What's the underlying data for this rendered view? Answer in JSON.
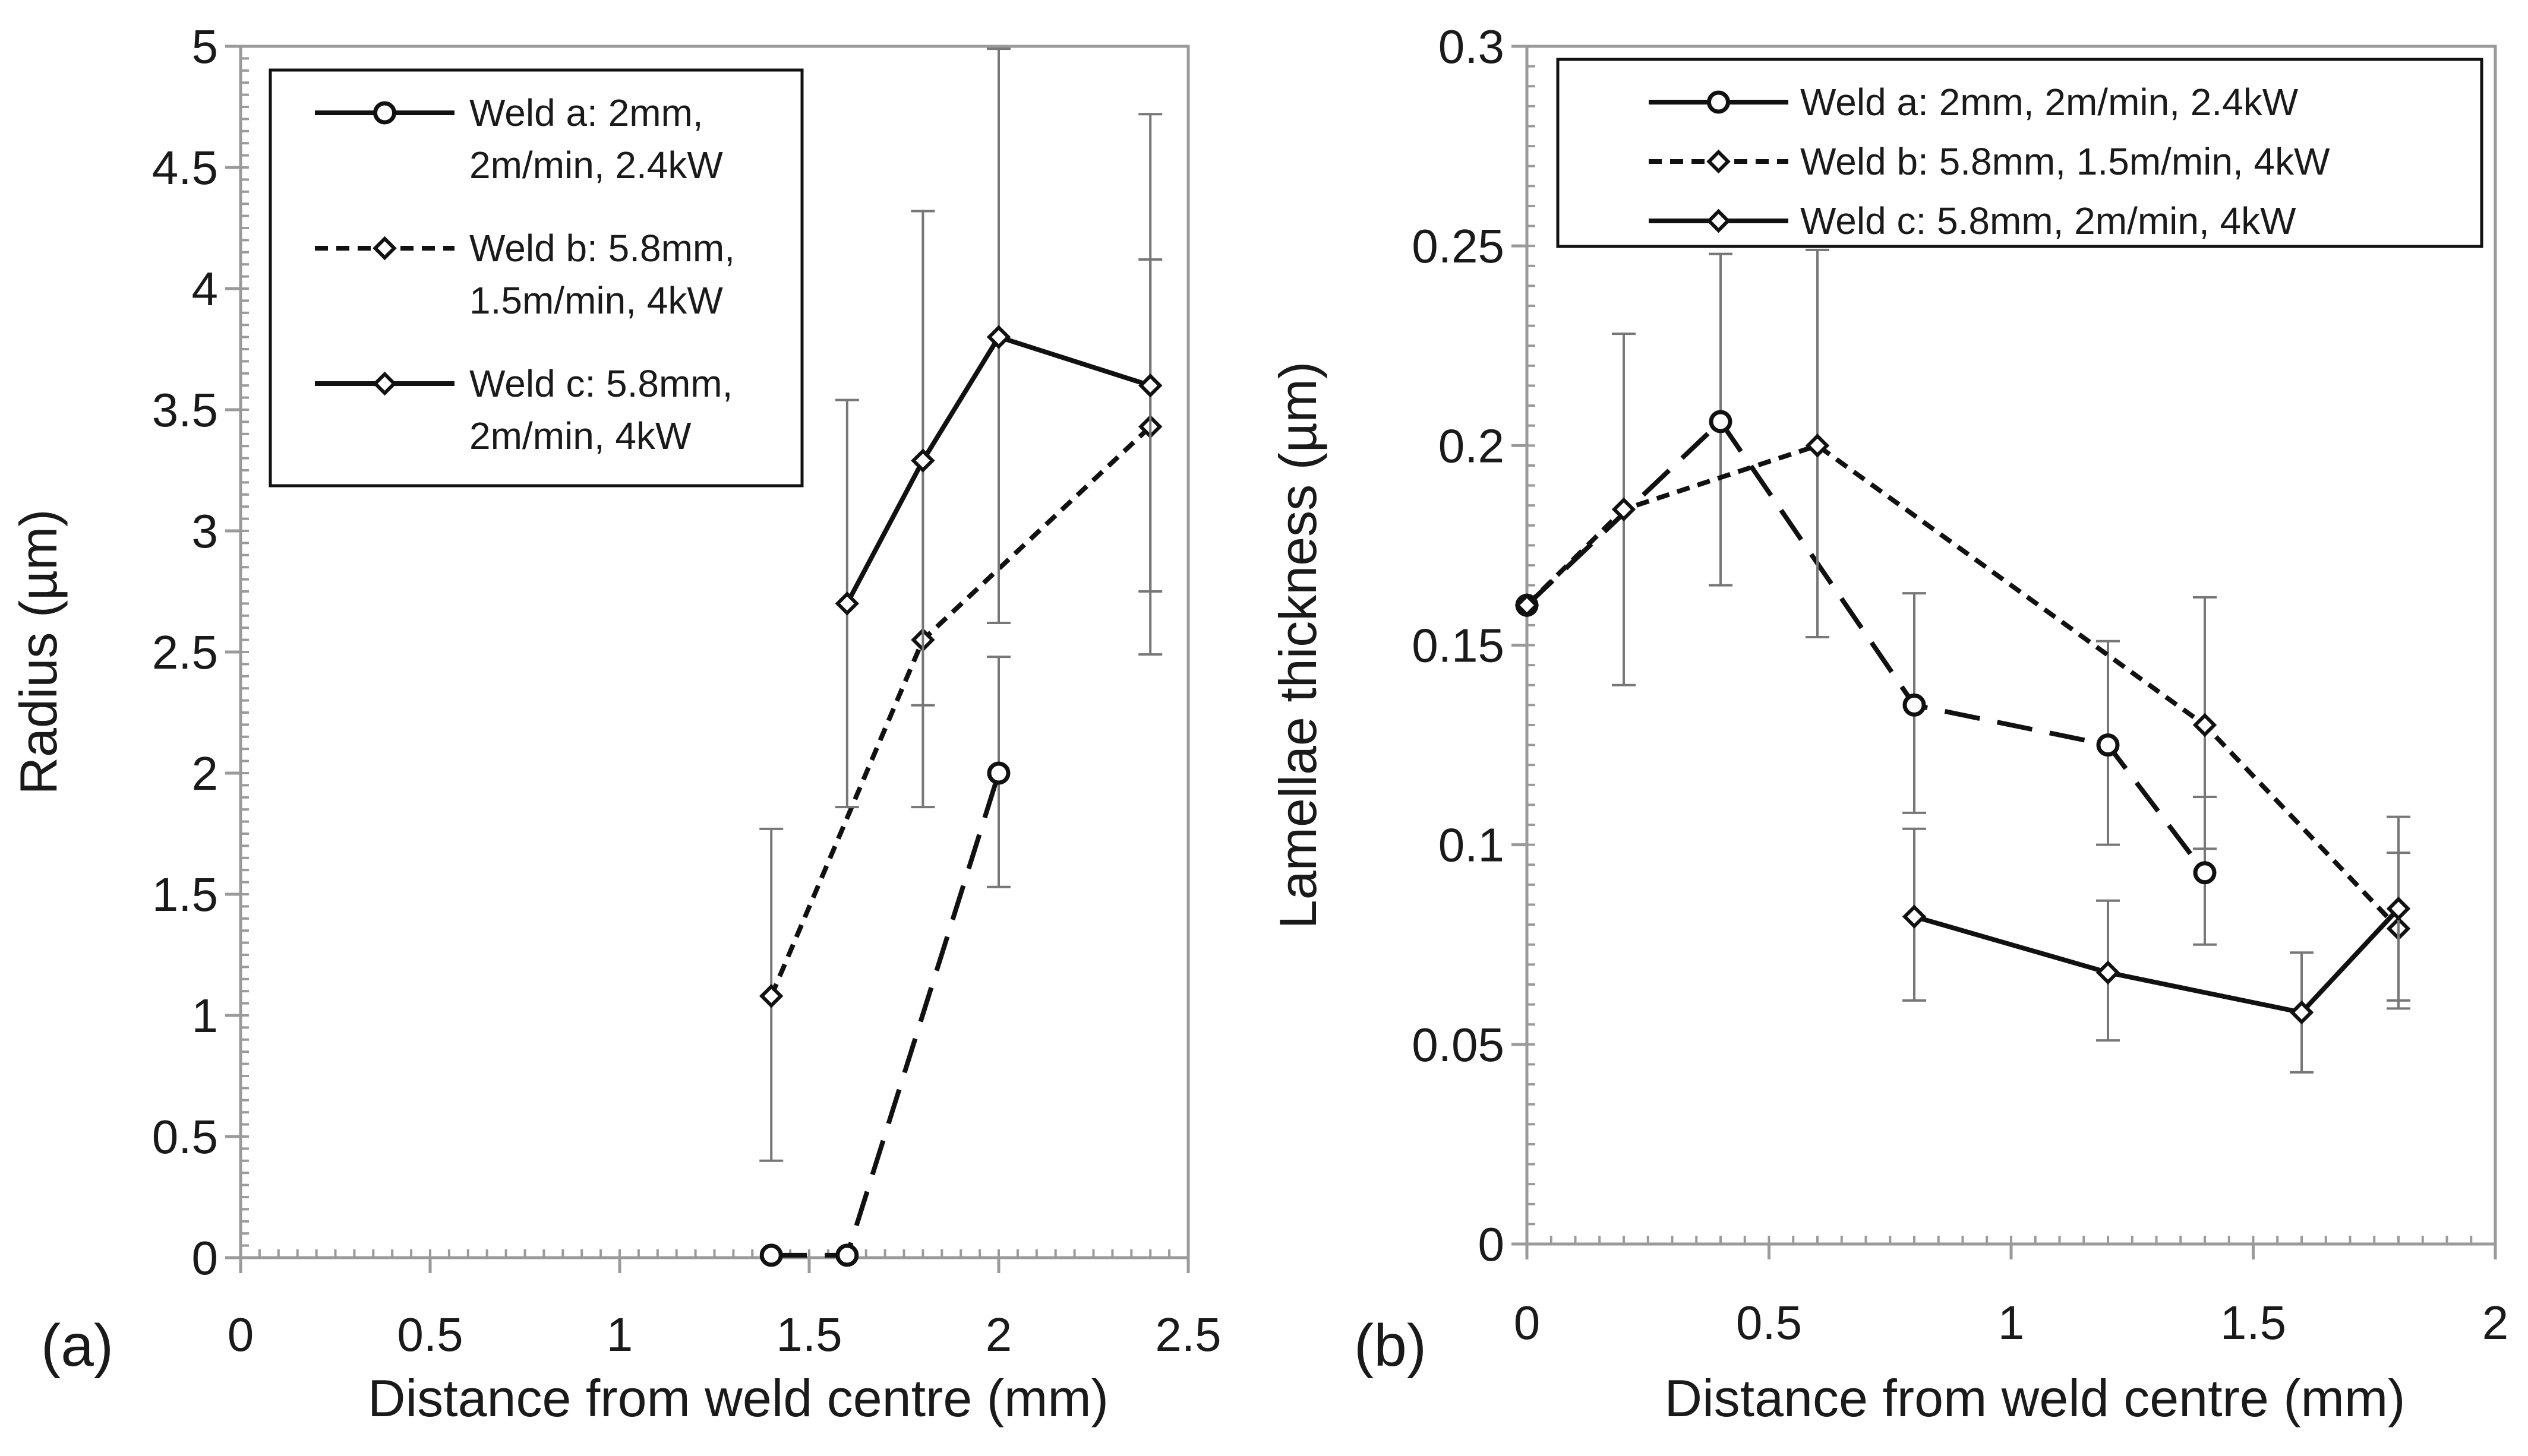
{
  "chart_data": [
    {
      "type": "line",
      "panel_label": "(a)",
      "title": "",
      "xlabel": "Distance from weld centre (mm)",
      "ylabel": "Radius (µm)",
      "xlim": [
        0,
        2.5
      ],
      "ylim": [
        0,
        5
      ],
      "x_ticks": [
        "0",
        "0.5",
        "1",
        "1.5",
        "2",
        "2.5"
      ],
      "y_ticks": [
        "0",
        "0.5",
        "1",
        "1.5",
        "2",
        "2.5",
        "3",
        "3.5",
        "4",
        "4.5",
        "5"
      ],
      "legend_position": "top-left",
      "series": [
        {
          "name": "Weld a: 2mm, 2m/min, 2.4kW",
          "legend_lines": [
            "Weld a: 2mm,",
            "2m/min, 2.4kW"
          ],
          "line_style": "long-dash",
          "marker": "circle",
          "x": [
            1.4,
            1.6,
            2.0
          ],
          "y": [
            0.01,
            0.01,
            2.0
          ],
          "err_low": [
            null,
            null,
            1.53
          ],
          "err_high": [
            null,
            null,
            2.48
          ]
        },
        {
          "name": "Weld b: 5.8mm, 1.5m/min, 4kW",
          "legend_lines": [
            "Weld b: 5.8mm,",
            "1.5m/min, 4kW"
          ],
          "line_style": "short-dash",
          "marker": "diamond",
          "x": [
            1.4,
            1.8,
            2.4
          ],
          "y": [
            1.08,
            2.55,
            3.43
          ],
          "err_low": [
            0.4,
            1.86,
            2.75
          ],
          "err_high": [
            1.77,
            4.32,
            4.12
          ]
        },
        {
          "name": "Weld c: 5.8mm, 2m/min, 4kW",
          "legend_lines": [
            "Weld c: 5.8mm,",
            "2m/min, 4kW"
          ],
          "line_style": "solid",
          "marker": "diamond",
          "x": [
            1.6,
            1.8,
            2.0,
            2.4
          ],
          "y": [
            2.7,
            3.29,
            3.8,
            3.6
          ],
          "err_low": [
            1.86,
            2.28,
            2.62,
            2.49
          ],
          "err_high": [
            3.54,
            4.32,
            4.99,
            4.72
          ]
        }
      ]
    },
    {
      "type": "line",
      "panel_label": "(b)",
      "title": "",
      "xlabel": "Distance from weld centre (mm)",
      "ylabel": "Lamellae thickness (µm)",
      "xlim": [
        0,
        2
      ],
      "ylim": [
        0,
        0.3
      ],
      "x_ticks": [
        "0",
        "0.5",
        "1",
        "1.5",
        "2"
      ],
      "y_ticks": [
        "0",
        "0.05",
        "0.1",
        "0.15",
        "0.2",
        "0.25",
        "0.3"
      ],
      "legend_position": "top",
      "series": [
        {
          "name": "Weld a: 2mm, 2m/min, 2.4kW",
          "legend_lines": [
            "Weld a: 2mm, 2m/min, 2.4kW"
          ],
          "line_style": "long-dash",
          "marker": "circle",
          "x": [
            0,
            0.4,
            0.8,
            1.2,
            1.4
          ],
          "y": [
            0.16,
            0.206,
            0.135,
            0.125,
            0.093
          ],
          "err_low": [
            null,
            0.165,
            0.108,
            0.1,
            0.075
          ],
          "err_high": [
            null,
            0.248,
            0.163,
            0.151,
            0.112
          ]
        },
        {
          "name": "Weld b: 5.8mm, 1.5m/min, 4kW",
          "legend_lines": [
            "Weld b: 5.8mm, 1.5m/min, 4kW"
          ],
          "line_style": "short-dash",
          "marker": "diamond",
          "x": [
            0,
            0.2,
            0.6,
            1.4,
            1.8
          ],
          "y": [
            0.16,
            0.184,
            0.2,
            0.13,
            0.079
          ],
          "err_low": [
            null,
            0.14,
            0.152,
            0.099,
            0.059
          ],
          "err_high": [
            null,
            0.228,
            0.249,
            0.162,
            0.098
          ]
        },
        {
          "name": "Weld c: 5.8mm, 2m/min, 4kW",
          "legend_lines": [
            "Weld c: 5.8mm, 2m/min, 4kW"
          ],
          "line_style": "solid",
          "marker": "diamond",
          "x": [
            0.8,
            1.2,
            1.6,
            1.8
          ],
          "y": [
            0.082,
            0.068,
            0.058,
            0.084
          ],
          "err_low": [
            0.061,
            0.051,
            0.043,
            0.061
          ],
          "err_high": [
            0.104,
            0.086,
            0.073,
            0.107
          ]
        }
      ]
    }
  ]
}
